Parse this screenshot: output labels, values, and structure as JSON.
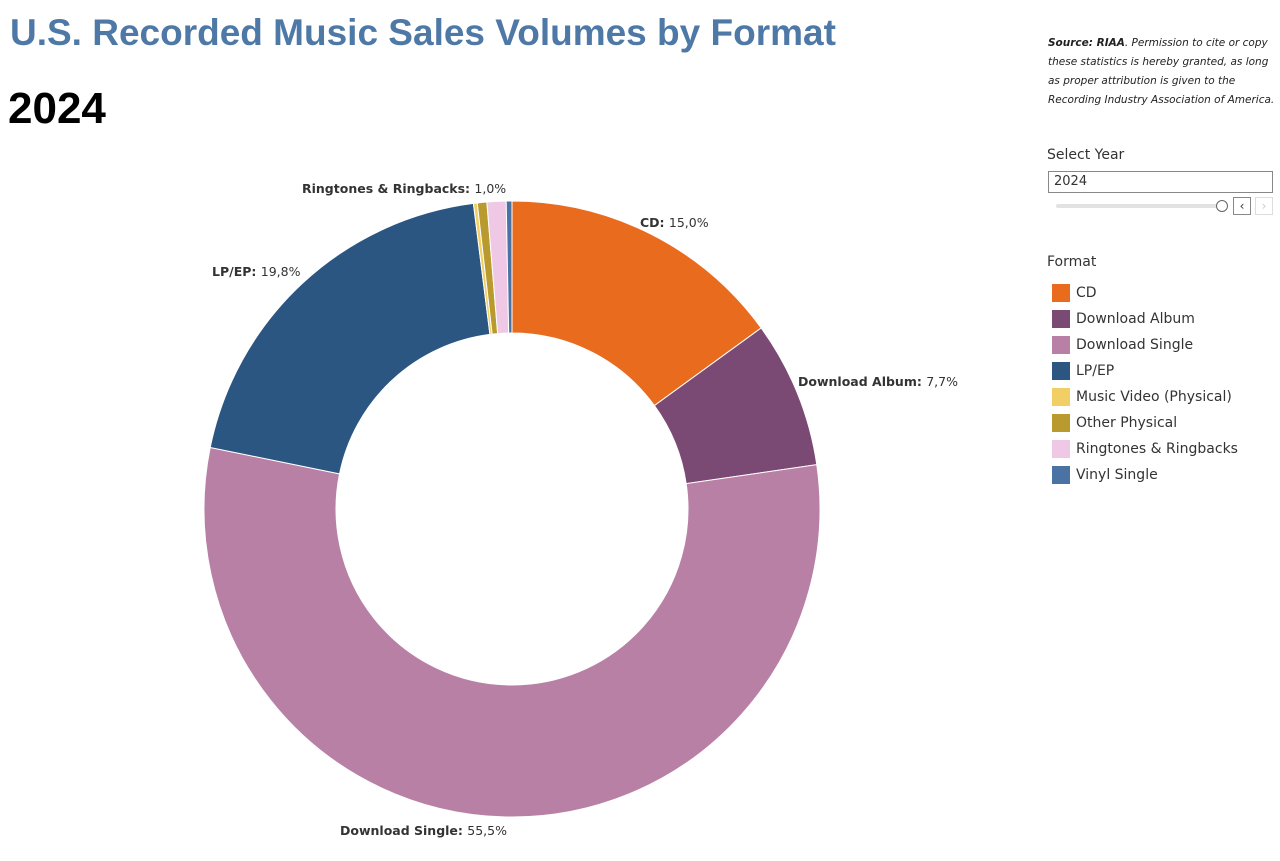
{
  "chart_data": {
    "type": "pie",
    "title": "U.S. Recorded Music Sales Volumes by Format",
    "subtitle": "2024",
    "donut": true,
    "legend_title": "Format",
    "legend_position": "right",
    "slices": [
      {
        "name": "CD",
        "value": 15.0,
        "label": "15,0%",
        "color": "#E96B1E",
        "show_label": true
      },
      {
        "name": "Download Album",
        "value": 7.7,
        "label": "7,7%",
        "color": "#7B4A74",
        "show_label": true
      },
      {
        "name": "Download Single",
        "value": 55.5,
        "label": "55,5%",
        "color": "#B880A5",
        "show_label": true
      },
      {
        "name": "LP/EP",
        "value": 19.8,
        "label": "19,8%",
        "color": "#2B5682",
        "show_label": true
      },
      {
        "name": "Music Video (Physical)",
        "value": 0.2,
        "color": "#F2CF64",
        "show_label": false
      },
      {
        "name": "Other Physical",
        "value": 0.5,
        "color": "#B89A2F",
        "show_label": false
      },
      {
        "name": "Ringtones & Ringbacks",
        "value": 1.0,
        "label": "1,0%",
        "color": "#EEC8E4",
        "show_label": true
      },
      {
        "name": "Vinyl Single",
        "value": 0.3,
        "color": "#4A73A3",
        "show_label": false
      }
    ]
  },
  "source": {
    "bold": "Source: RIAA",
    "text": ". Permission to cite or copy these statistics is hereby granted, as long as proper attribution is given to the Recording Industry Association of America."
  },
  "filter": {
    "label": "Select Year",
    "value": "2024",
    "prev": "‹",
    "next": "›"
  }
}
